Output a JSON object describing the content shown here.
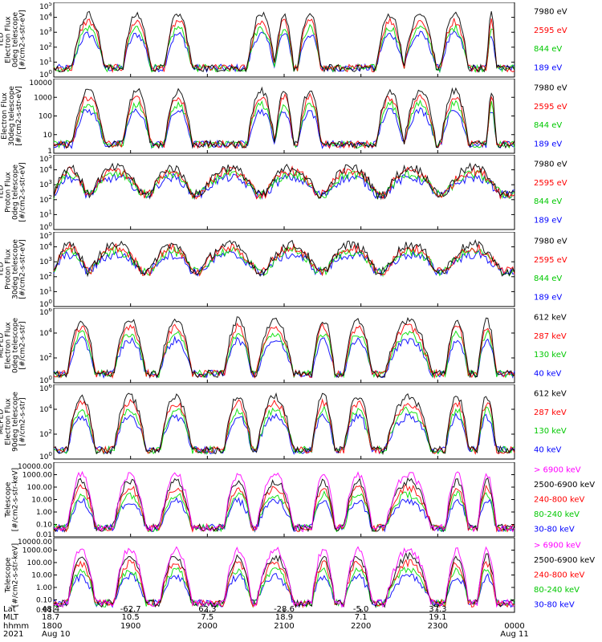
{
  "chart_data": [
    {
      "type": "line",
      "title_lines": [
        "TED",
        "Electron Flux",
        "0deg telescope",
        "[#/cm2-s-str-eV]"
      ],
      "yscale": "log",
      "ylim": [
        1,
        100000
      ],
      "ytick_labels": [
        "10^0",
        "10^1",
        "10^2",
        "10^3",
        "10^4",
        "10^5"
      ],
      "grid": false,
      "legend_position": "right",
      "series": [
        {
          "name": "7980 eV",
          "color": "#000000"
        },
        {
          "name": "2595 eV",
          "color": "#ff0000"
        },
        {
          "name": "844 eV",
          "color": "#00dd00"
        },
        {
          "name": "189 eV",
          "color": "#0000ff"
        }
      ]
    },
    {
      "type": "line",
      "title_lines": [
        "Electron Flux",
        "30deg telescope",
        "[#/cm2-s-str-eV]"
      ],
      "yscale": "log",
      "ylim": [
        1,
        10000
      ],
      "ytick_labels": [
        "1",
        "10",
        "100",
        "1000",
        "10000"
      ],
      "grid": false,
      "legend_position": "right",
      "series": [
        {
          "name": "7980 eV",
          "color": "#000000"
        },
        {
          "name": "2595 eV",
          "color": "#ff0000"
        },
        {
          "name": "844 eV",
          "color": "#00dd00"
        },
        {
          "name": "189 eV",
          "color": "#0000ff"
        }
      ]
    },
    {
      "type": "line",
      "title_lines": [
        "TED",
        "Proton Flux",
        "0deg telescope",
        "[#/cm2-s-str-eV]"
      ],
      "yscale": "log",
      "ylim": [
        1,
        100000
      ],
      "ytick_labels": [
        "10^0",
        "10^1",
        "10^2",
        "10^3",
        "10^4",
        "10^5"
      ],
      "grid": false,
      "legend_position": "right",
      "series": [
        {
          "name": "7980 eV",
          "color": "#000000"
        },
        {
          "name": "2595 eV",
          "color": "#ff0000"
        },
        {
          "name": "844 eV",
          "color": "#00dd00"
        },
        {
          "name": "189 eV",
          "color": "#0000ff"
        }
      ]
    },
    {
      "type": "line",
      "title_lines": [
        "TED",
        "Proton Flux",
        "30deg telescope",
        "[#/cm2-s-str-eV]"
      ],
      "yscale": "log",
      "ylim": [
        1,
        100000
      ],
      "ytick_labels": [
        "10^0",
        "10^1",
        "10^2",
        "10^3",
        "10^4",
        "10^5"
      ],
      "grid": false,
      "legend_position": "right",
      "series": [
        {
          "name": "7980 eV",
          "color": "#000000"
        },
        {
          "name": "2595 eV",
          "color": "#ff0000"
        },
        {
          "name": "844 eV",
          "color": "#00dd00"
        },
        {
          "name": "189 eV",
          "color": "#0000ff"
        }
      ]
    },
    {
      "type": "line",
      "title_lines": [
        "MEPED",
        "Electron Flux",
        "0deg telescope",
        "[#/cm2-s-str]"
      ],
      "yscale": "log",
      "ylim": [
        1,
        1000000
      ],
      "ytick_labels": [
        "10^0",
        "10^2",
        "10^4",
        "10^6"
      ],
      "grid": false,
      "legend_position": "right",
      "series": [
        {
          "name": "612 keV",
          "color": "#000000"
        },
        {
          "name": "287 keV",
          "color": "#ff0000"
        },
        {
          "name": "130 keV",
          "color": "#00dd00"
        },
        {
          "name": "40 keV",
          "color": "#0000ff"
        }
      ]
    },
    {
      "type": "line",
      "title_lines": [
        "MEPED",
        "Electron Flux",
        "90deg telescope",
        "[#/cm2-s-str]"
      ],
      "yscale": "log",
      "ylim": [
        1,
        1000000
      ],
      "ytick_labels": [
        "10^0",
        "10^2",
        "10^4",
        "10^6"
      ],
      "grid": false,
      "legend_position": "right",
      "series": [
        {
          "name": "612 keV",
          "color": "#000000"
        },
        {
          "name": "287 keV",
          "color": "#ff0000"
        },
        {
          "name": "130 keV",
          "color": "#00dd00"
        },
        {
          "name": "40 keV",
          "color": "#0000ff"
        }
      ]
    },
    {
      "type": "line",
      "title_lines": [
        "Telescope",
        "[#/cm2-s-str-keV]"
      ],
      "yscale": "log",
      "ylim": [
        0.01,
        10000
      ],
      "ytick_labels": [
        "0.01",
        "0.10",
        "1.00",
        "10.00",
        "100.00",
        "1000.00",
        "10000.00"
      ],
      "grid": false,
      "legend_position": "right",
      "series": [
        {
          "name": "> 6900 keV",
          "color": "#ff00ff"
        },
        {
          "name": "2500-6900 keV",
          "color": "#000000"
        },
        {
          "name": "240-800 keV",
          "color": "#ff0000"
        },
        {
          "name": "80-240 keV",
          "color": "#00dd00"
        },
        {
          "name": "30-80 keV",
          "color": "#0000ff"
        }
      ]
    },
    {
      "type": "line",
      "title_lines": [
        "Telescope",
        "[#/cm2-s-str-keV]"
      ],
      "yscale": "log",
      "ylim": [
        0.01,
        10000
      ],
      "ytick_labels": [
        "0.01",
        "0.10",
        "1.00",
        "10.00",
        "100.00",
        "1000.00",
        "10000.00"
      ],
      "grid": false,
      "legend_position": "right",
      "series": [
        {
          "name": "> 6900 keV",
          "color": "#ff00ff"
        },
        {
          "name": "2500-6900 keV",
          "color": "#000000"
        },
        {
          "name": "240-800 keV",
          "color": "#ff0000"
        },
        {
          "name": "80-240 keV",
          "color": "#00dd00"
        },
        {
          "name": "30-80 keV",
          "color": "#0000ff"
        }
      ]
    }
  ],
  "footer": {
    "row_labels": [
      "Lat",
      "MLT",
      "hhmm",
      "2021"
    ],
    "ticks": [
      {
        "lat": "48.4",
        "mlt": "18.7",
        "hhmm": "1800",
        "date": "Aug 10"
      },
      {
        "lat": "-62.7",
        "mlt": "10.5",
        "hhmm": "1900",
        "date": ""
      },
      {
        "lat": "62.3",
        "mlt": "7.5",
        "hhmm": "2000",
        "date": ""
      },
      {
        "lat": "-28.6",
        "mlt": "18.9",
        "hhmm": "2100",
        "date": ""
      },
      {
        "lat": "-5.0",
        "mlt": "7.1",
        "hhmm": "2200",
        "date": ""
      },
      {
        "lat": "37.3",
        "mlt": "19.1",
        "hhmm": "2300",
        "date": ""
      },
      {
        "lat": "",
        "mlt": "",
        "hhmm": "0000",
        "date": "Aug 11"
      }
    ]
  }
}
